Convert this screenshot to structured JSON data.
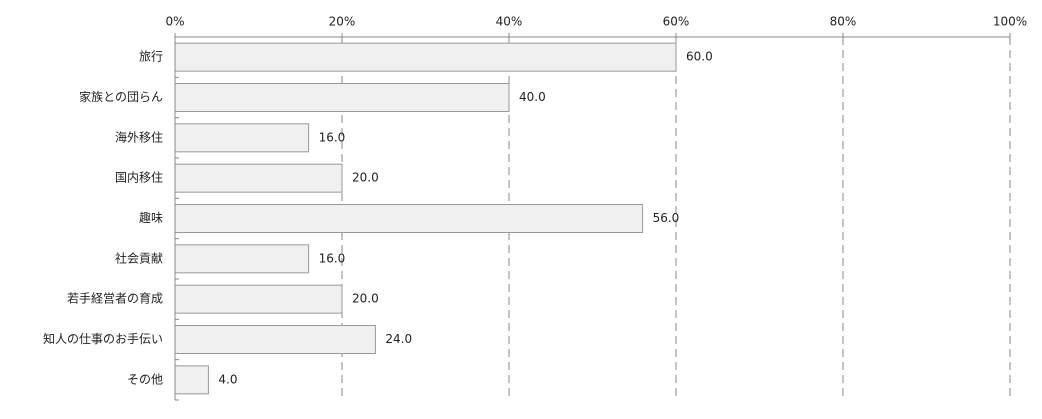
{
  "chart_data": {
    "type": "bar",
    "orientation": "horizontal",
    "categories": [
      "旅行",
      "家族との団らん",
      "海外移住",
      "国内移住",
      "趣味",
      "社会貢献",
      "若手経営者の育成",
      "知人の仕事のお手伝い",
      "その他"
    ],
    "values": [
      60,
      40,
      16,
      20,
      56,
      16,
      20,
      24,
      4
    ],
    "value_labels": [
      "60.0",
      "40.0",
      "16.0",
      "20.0",
      "56.0",
      "16.0",
      "20.0",
      "24.0",
      "4.0"
    ],
    "color": "#f0f0f0",
    "xlim": [
      0,
      100
    ],
    "xticks": [
      {
        "value": 0,
        "label": "0%"
      },
      {
        "value": 20,
        "label": "20%"
      },
      {
        "value": 40,
        "label": "40%"
      },
      {
        "value": 60,
        "label": "60%"
      },
      {
        "value": 80,
        "label": "80%"
      },
      {
        "value": 100,
        "label": "100%"
      }
    ],
    "grid": true
  }
}
